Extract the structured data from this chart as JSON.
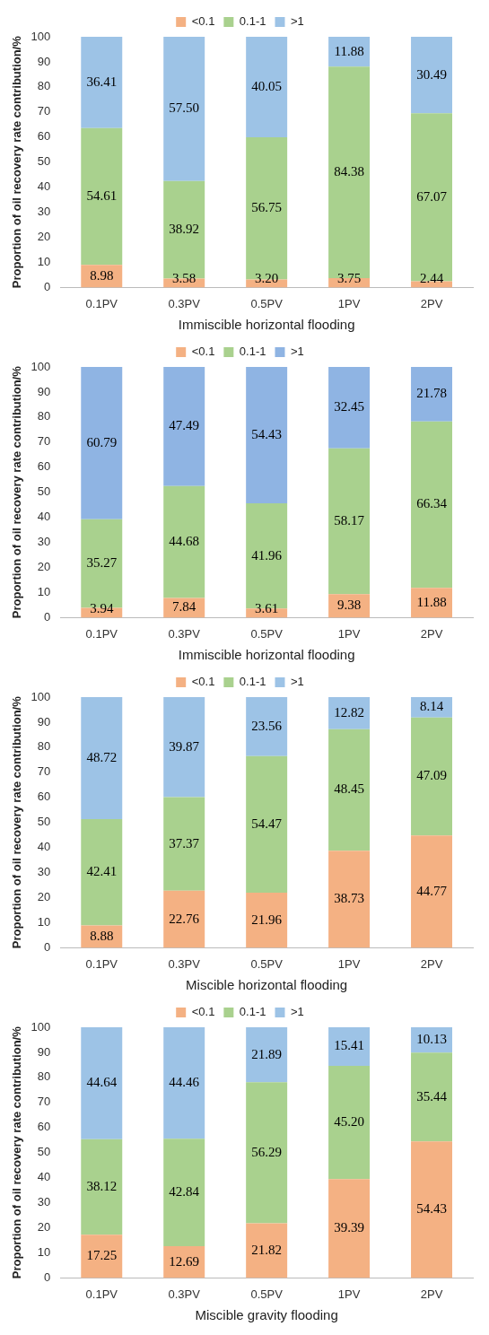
{
  "chart_data": [
    {
      "type": "bar",
      "stacked": true,
      "xlabel": "Immiscible horizontal flooding",
      "ylabel": "Proportion of oil recovery rate contribution/%",
      "categories": [
        "0.1PV",
        "0.3PV",
        "0.5PV",
        "1PV",
        "2PV"
      ],
      "ylim": [
        0,
        100
      ],
      "yticks": [
        0,
        10,
        20,
        30,
        40,
        50,
        60,
        70,
        80,
        90,
        100
      ],
      "legend": "top",
      "grid": false,
      "series": [
        {
          "name": "<0.1",
          "color": "#f4b183",
          "values": [
            8.98,
            3.58,
            3.2,
            3.75,
            2.44
          ],
          "value_labels": [
            "8.98",
            "3.58",
            "3.20",
            "3.75",
            "2.44"
          ]
        },
        {
          "name": "0.1-1",
          "color": "#a9d18e",
          "values": [
            54.61,
            38.92,
            56.75,
            84.38,
            67.07
          ],
          "value_labels": [
            "54.61",
            "38.92",
            "56.75",
            "84.38",
            "67.07"
          ]
        },
        {
          "name": ">1",
          "color": "#9dc3e6",
          "values": [
            36.41,
            57.5,
            40.05,
            11.88,
            30.49
          ],
          "value_labels": [
            "36.41",
            "57.50",
            "40.05",
            "11.88",
            "30.49"
          ]
        }
      ]
    },
    {
      "type": "bar",
      "stacked": true,
      "xlabel": "Immiscible horizontal flooding",
      "ylabel": "Proportion of oil recovery rate contribution/%",
      "categories": [
        "0.1PV",
        "0.3PV",
        "0.5PV",
        "1PV",
        "2PV"
      ],
      "ylim": [
        0,
        100
      ],
      "yticks": [
        0,
        10,
        20,
        30,
        40,
        50,
        60,
        70,
        80,
        90,
        100
      ],
      "legend": "top",
      "grid": false,
      "series": [
        {
          "name": "<0.1",
          "color": "#f4b183",
          "values": [
            3.94,
            7.84,
            3.61,
            9.38,
            11.88
          ],
          "value_labels": [
            "3.94",
            "7.84",
            "3.61",
            "9.38",
            "11.88"
          ]
        },
        {
          "name": "0.1-1",
          "color": "#a9d18e",
          "values": [
            35.27,
            44.68,
            41.96,
            58.17,
            66.34
          ],
          "value_labels": [
            "35.27",
            "44.68",
            "41.96",
            "58.17",
            "66.34"
          ]
        },
        {
          "name": ">1",
          "color": "#8fb4e3",
          "values": [
            60.79,
            47.49,
            54.43,
            32.45,
            21.78
          ],
          "value_labels": [
            "60.79",
            "47.49",
            "54.43",
            "32.45",
            "21.78"
          ]
        }
      ]
    },
    {
      "type": "bar",
      "stacked": true,
      "xlabel": "Miscible horizontal flooding",
      "ylabel": "Proportion of oil recovery rate contribution/%",
      "categories": [
        "0.1PV",
        "0.3PV",
        "0.5PV",
        "1PV",
        "2PV"
      ],
      "ylim": [
        0,
        100
      ],
      "yticks": [
        0,
        10,
        20,
        30,
        40,
        50,
        60,
        70,
        80,
        90,
        100
      ],
      "legend": "top",
      "grid": false,
      "series": [
        {
          "name": "<0.1",
          "color": "#f4b183",
          "values": [
            8.88,
            22.76,
            21.96,
            38.73,
            44.77
          ],
          "value_labels": [
            "8.88",
            "22.76",
            "21.96",
            "38.73",
            "44.77"
          ]
        },
        {
          "name": "0.1-1",
          "color": "#a9d18e",
          "values": [
            42.41,
            37.37,
            54.47,
            48.45,
            47.09
          ],
          "value_labels": [
            "42.41",
            "37.37",
            "54.47",
            "48.45",
            "47.09"
          ]
        },
        {
          "name": ">1",
          "color": "#9dc3e6",
          "values": [
            48.72,
            39.87,
            23.56,
            12.82,
            8.14
          ],
          "value_labels": [
            "48.72",
            "39.87",
            "23.56",
            "12.82",
            "8.14"
          ]
        }
      ]
    },
    {
      "type": "bar",
      "stacked": true,
      "xlabel": "Miscible gravity flooding",
      "ylabel": "Proportion of oil recovery rate contribution/%",
      "categories": [
        "0.1PV",
        "0.3PV",
        "0.5PV",
        "1PV",
        "2PV"
      ],
      "ylim": [
        0,
        100
      ],
      "yticks": [
        0,
        10,
        20,
        30,
        40,
        50,
        60,
        70,
        80,
        90,
        100
      ],
      "legend": "top",
      "grid": false,
      "series": [
        {
          "name": "<0.1",
          "color": "#f4b183",
          "values": [
            17.25,
            12.69,
            21.82,
            39.39,
            54.43
          ],
          "value_labels": [
            "17.25",
            "12.69",
            "21.82",
            "39.39",
            "54.43"
          ]
        },
        {
          "name": "0.1-1",
          "color": "#a9d18e",
          "values": [
            38.12,
            42.84,
            56.29,
            45.2,
            35.44
          ],
          "value_labels": [
            "38.12",
            "42.84",
            "56.29",
            "45.20",
            "35.44"
          ]
        },
        {
          "name": ">1",
          "color": "#9dc3e6",
          "values": [
            44.64,
            44.46,
            21.89,
            15.41,
            10.13
          ],
          "value_labels": [
            "44.64",
            "44.46",
            "21.89",
            "15.41",
            "10.13"
          ]
        }
      ]
    }
  ]
}
